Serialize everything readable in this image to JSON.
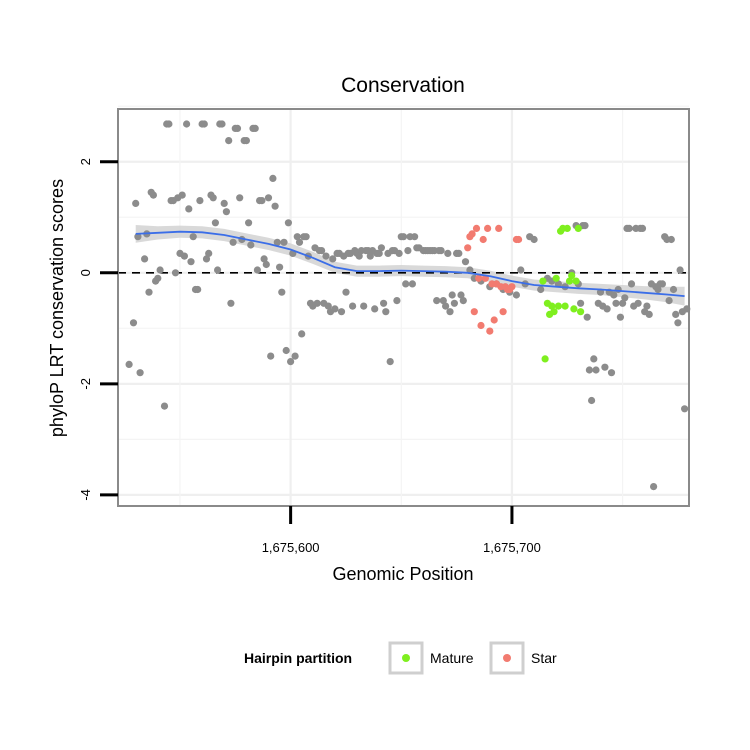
{
  "chart_data": {
    "type": "scatter",
    "title": "Conservation",
    "xlabel": "Genomic Position",
    "ylabel": "phyloP LRT conservation scores",
    "xlim": [
      1675522,
      1675780
    ],
    "ylim": [
      -4.2,
      2.95
    ],
    "grid": true,
    "x_ticks": [
      {
        "value": 1675600,
        "label": "1,675,600"
      },
      {
        "value": 1675700,
        "label": "1,675,700"
      }
    ],
    "y_ticks": [
      {
        "value": 2,
        "label": "2"
      },
      {
        "value": 0,
        "label": "0"
      },
      {
        "value": -2,
        "label": "-2"
      },
      {
        "value": -4,
        "label": "-4"
      }
    ],
    "reference_line": {
      "y": 0,
      "style": "dashed"
    },
    "legend": {
      "title": "Hairpin partition",
      "position": "bottom",
      "entries": [
        {
          "label": "Mature",
          "color": "#7FEF1F"
        },
        {
          "label": "Star",
          "color": "#F27B70"
        }
      ]
    },
    "colors": {
      "other": "#8C8C8C",
      "Mature": "#7FEF1F",
      "Star": "#F27B70",
      "smooth": "#3B6EE8",
      "band": "#D2D2D2"
    },
    "smooth": {
      "x": [
        1675530,
        1675540,
        1675550,
        1675560,
        1675570,
        1675580,
        1675590,
        1675600,
        1675610,
        1675620,
        1675630,
        1675640,
        1675650,
        1675660,
        1675670,
        1675680,
        1675690,
        1675700,
        1675710,
        1675720,
        1675730,
        1675740,
        1675750,
        1675760,
        1675770,
        1675778
      ],
      "y": [
        0.7,
        0.72,
        0.74,
        0.73,
        0.68,
        0.6,
        0.52,
        0.42,
        0.27,
        0.1,
        0.03,
        0.03,
        0.04,
        0.03,
        0.02,
        0.0,
        -0.06,
        -0.15,
        -0.22,
        -0.25,
        -0.28,
        -0.3,
        -0.33,
        -0.36,
        -0.39,
        -0.42
      ],
      "se": [
        0.16,
        0.12,
        0.11,
        0.11,
        0.11,
        0.11,
        0.11,
        0.11,
        0.11,
        0.1,
        0.1,
        0.1,
        0.1,
        0.1,
        0.1,
        0.1,
        0.1,
        0.1,
        0.1,
        0.1,
        0.1,
        0.1,
        0.11,
        0.12,
        0.14,
        0.17
      ]
    },
    "series": [
      {
        "name": "Other",
        "points": [
          [
            1675527,
            -1.65
          ],
          [
            1675529,
            -0.9
          ],
          [
            1675530,
            1.25
          ],
          [
            1675531,
            0.65
          ],
          [
            1675532,
            -1.8
          ],
          [
            1675534,
            0.25
          ],
          [
            1675535,
            0.7
          ],
          [
            1675536,
            -0.35
          ],
          [
            1675537,
            1.45
          ],
          [
            1675538,
            1.4
          ],
          [
            1675539,
            -0.15
          ],
          [
            1675540,
            -0.1
          ],
          [
            1675541,
            0.05
          ],
          [
            1675543,
            -2.4
          ],
          [
            1675544,
            2.68
          ],
          [
            1675545,
            2.68
          ],
          [
            1675546,
            1.3
          ],
          [
            1675547,
            1.3
          ],
          [
            1675548,
            0.0
          ],
          [
            1675549,
            1.35
          ],
          [
            1675550,
            0.35
          ],
          [
            1675551,
            1.4
          ],
          [
            1675552,
            0.3
          ],
          [
            1675553,
            2.68
          ],
          [
            1675554,
            1.15
          ],
          [
            1675555,
            0.2
          ],
          [
            1675556,
            0.65
          ],
          [
            1675557,
            -0.3
          ],
          [
            1675558,
            -0.3
          ],
          [
            1675559,
            1.3
          ],
          [
            1675560,
            2.68
          ],
          [
            1675561,
            2.68
          ],
          [
            1675562,
            0.25
          ],
          [
            1675563,
            0.35
          ],
          [
            1675564,
            1.4
          ],
          [
            1675565,
            1.35
          ],
          [
            1675566,
            0.9
          ],
          [
            1675567,
            0.05
          ],
          [
            1675568,
            2.68
          ],
          [
            1675569,
            2.68
          ],
          [
            1675570,
            1.25
          ],
          [
            1675571,
            1.1
          ],
          [
            1675572,
            2.38
          ],
          [
            1675573,
            -0.55
          ],
          [
            1675574,
            0.55
          ],
          [
            1675575,
            2.6
          ],
          [
            1675576,
            2.6
          ],
          [
            1675577,
            1.35
          ],
          [
            1675578,
            0.6
          ],
          [
            1675579,
            2.38
          ],
          [
            1675580,
            2.38
          ],
          [
            1675581,
            0.9
          ],
          [
            1675582,
            0.5
          ],
          [
            1675583,
            2.6
          ],
          [
            1675584,
            2.6
          ],
          [
            1675585,
            0.05
          ],
          [
            1675586,
            1.3
          ],
          [
            1675587,
            1.3
          ],
          [
            1675588,
            0.25
          ],
          [
            1675589,
            0.15
          ],
          [
            1675590,
            1.35
          ],
          [
            1675591,
            -1.5
          ],
          [
            1675592,
            1.7
          ],
          [
            1675593,
            1.2
          ],
          [
            1675594,
            0.55
          ],
          [
            1675595,
            0.1
          ],
          [
            1675596,
            -0.35
          ],
          [
            1675597,
            0.55
          ],
          [
            1675598,
            -1.4
          ],
          [
            1675599,
            0.9
          ],
          [
            1675600,
            -1.6
          ],
          [
            1675601,
            0.35
          ],
          [
            1675602,
            -1.5
          ],
          [
            1675603,
            0.65
          ],
          [
            1675604,
            0.55
          ],
          [
            1675605,
            -1.1
          ],
          [
            1675606,
            0.65
          ],
          [
            1675607,
            0.65
          ],
          [
            1675608,
            0.3
          ],
          [
            1675609,
            -0.55
          ],
          [
            1675610,
            -0.6
          ],
          [
            1675611,
            0.45
          ],
          [
            1675612,
            -0.55
          ],
          [
            1675613,
            0.4
          ],
          [
            1675614,
            0.4
          ],
          [
            1675615,
            -0.55
          ],
          [
            1675616,
            0.3
          ],
          [
            1675617,
            -0.6
          ],
          [
            1675618,
            -0.7
          ],
          [
            1675619,
            0.25
          ],
          [
            1675620,
            -0.65
          ],
          [
            1675621,
            0.35
          ],
          [
            1675622,
            0.35
          ],
          [
            1675623,
            -0.7
          ],
          [
            1675624,
            0.3
          ],
          [
            1675625,
            -0.35
          ],
          [
            1675626,
            0.35
          ],
          [
            1675627,
            0.35
          ],
          [
            1675628,
            -0.6
          ],
          [
            1675629,
            0.4
          ],
          [
            1675630,
            0.35
          ],
          [
            1675631,
            0.3
          ],
          [
            1675632,
            0.4
          ],
          [
            1675633,
            -0.6
          ],
          [
            1675634,
            0.4
          ],
          [
            1675635,
            0.4
          ],
          [
            1675636,
            0.3
          ],
          [
            1675637,
            0.4
          ],
          [
            1675638,
            -0.65
          ],
          [
            1675639,
            0.35
          ],
          [
            1675640,
            0.35
          ],
          [
            1675641,
            0.45
          ],
          [
            1675642,
            -0.55
          ],
          [
            1675643,
            -0.7
          ],
          [
            1675644,
            0.35
          ],
          [
            1675645,
            -1.6
          ],
          [
            1675646,
            0.4
          ],
          [
            1675647,
            0.4
          ],
          [
            1675648,
            -0.5
          ],
          [
            1675649,
            0.35
          ],
          [
            1675650,
            0.65
          ],
          [
            1675651,
            0.65
          ],
          [
            1675652,
            -0.2
          ],
          [
            1675653,
            0.4
          ],
          [
            1675654,
            0.65
          ],
          [
            1675655,
            -0.2
          ],
          [
            1675656,
            0.65
          ],
          [
            1675657,
            0.45
          ],
          [
            1675658,
            0.45
          ],
          [
            1675660,
            0.4
          ],
          [
            1675661,
            0.4
          ],
          [
            1675662,
            0.4
          ],
          [
            1675663,
            0.4
          ],
          [
            1675664,
            0.4
          ],
          [
            1675665,
            0.4
          ],
          [
            1675666,
            -0.5
          ],
          [
            1675667,
            0.4
          ],
          [
            1675668,
            0.4
          ],
          [
            1675669,
            -0.5
          ],
          [
            1675670,
            -0.6
          ],
          [
            1675671,
            0.35
          ],
          [
            1675672,
            -0.7
          ],
          [
            1675673,
            -0.4
          ],
          [
            1675674,
            -0.55
          ],
          [
            1675675,
            0.35
          ],
          [
            1675676,
            0.35
          ],
          [
            1675677,
            -0.4
          ],
          [
            1675678,
            -0.5
          ],
          [
            1675679,
            0.2
          ],
          [
            1675681,
            0.05
          ],
          [
            1675683,
            -0.1
          ],
          [
            1675686,
            -0.15
          ],
          [
            1675690,
            -0.25
          ],
          [
            1675693,
            -0.2
          ],
          [
            1675696,
            -0.3
          ],
          [
            1675699,
            -0.35
          ],
          [
            1675702,
            -0.4
          ],
          [
            1675704,
            0.05
          ],
          [
            1675706,
            -0.2
          ],
          [
            1675708,
            0.65
          ],
          [
            1675710,
            0.6
          ],
          [
            1675713,
            -0.3
          ],
          [
            1675716,
            -0.1
          ],
          [
            1675718,
            -0.15
          ],
          [
            1675721,
            -0.2
          ],
          [
            1675724,
            -0.25
          ],
          [
            1675727,
            0.0
          ],
          [
            1675729,
            0.85
          ],
          [
            1675730,
            -0.2
          ],
          [
            1675731,
            -0.55
          ],
          [
            1675732,
            0.85
          ],
          [
            1675733,
            0.85
          ],
          [
            1675734,
            -0.8
          ],
          [
            1675735,
            -1.75
          ],
          [
            1675736,
            -2.3
          ],
          [
            1675737,
            -1.55
          ],
          [
            1675738,
            -1.75
          ],
          [
            1675739,
            -0.55
          ],
          [
            1675740,
            -0.35
          ],
          [
            1675741,
            -0.6
          ],
          [
            1675742,
            -1.7
          ],
          [
            1675743,
            -0.65
          ],
          [
            1675744,
            -0.35
          ],
          [
            1675745,
            -1.8
          ],
          [
            1675746,
            -0.4
          ],
          [
            1675747,
            -0.55
          ],
          [
            1675748,
            -0.3
          ],
          [
            1675749,
            -0.8
          ],
          [
            1675750,
            -0.55
          ],
          [
            1675751,
            -0.45
          ],
          [
            1675752,
            0.8
          ],
          [
            1675753,
            0.8
          ],
          [
            1675754,
            -0.2
          ],
          [
            1675755,
            -0.6
          ],
          [
            1675756,
            0.8
          ],
          [
            1675757,
            -0.55
          ],
          [
            1675758,
            0.8
          ],
          [
            1675759,
            0.8
          ],
          [
            1675760,
            -0.7
          ],
          [
            1675761,
            -0.6
          ],
          [
            1675762,
            -0.75
          ],
          [
            1675763,
            -0.2
          ],
          [
            1675764,
            -3.85
          ],
          [
            1675765,
            -0.25
          ],
          [
            1675766,
            -0.3
          ],
          [
            1675767,
            -0.2
          ],
          [
            1675768,
            -0.2
          ],
          [
            1675769,
            0.65
          ],
          [
            1675770,
            0.6
          ],
          [
            1675771,
            -0.5
          ],
          [
            1675772,
            0.6
          ],
          [
            1675773,
            -0.3
          ],
          [
            1675774,
            -0.75
          ],
          [
            1675775,
            -0.9
          ],
          [
            1675776,
            0.05
          ],
          [
            1675777,
            -0.7
          ],
          [
            1675778,
            -2.45
          ],
          [
            1675779,
            -0.65
          ]
        ]
      },
      {
        "name": "Mature",
        "points": [
          [
            1675714,
            -0.15
          ],
          [
            1675715,
            -1.55
          ],
          [
            1675716,
            -0.55
          ],
          [
            1675717,
            -0.75
          ],
          [
            1675718,
            -0.6
          ],
          [
            1675719,
            -0.7
          ],
          [
            1675720,
            -0.1
          ],
          [
            1675721,
            -0.6
          ],
          [
            1675722,
            0.75
          ],
          [
            1675723,
            0.8
          ],
          [
            1675724,
            -0.6
          ],
          [
            1675725,
            0.8
          ],
          [
            1675726,
            -0.15
          ],
          [
            1675727,
            -0.05
          ],
          [
            1675728,
            -0.65
          ],
          [
            1675729,
            -0.15
          ],
          [
            1675730,
            0.8
          ],
          [
            1675731,
            -0.7
          ]
        ]
      },
      {
        "name": "Star",
        "points": [
          [
            1675680,
            0.45
          ],
          [
            1675681,
            0.65
          ],
          [
            1675682,
            0.7
          ],
          [
            1675683,
            -0.7
          ],
          [
            1675684,
            0.8
          ],
          [
            1675685,
            -0.1
          ],
          [
            1675686,
            -0.95
          ],
          [
            1675687,
            0.6
          ],
          [
            1675688,
            -0.1
          ],
          [
            1675689,
            0.8
          ],
          [
            1675690,
            -1.05
          ],
          [
            1675691,
            -0.2
          ],
          [
            1675692,
            -0.85
          ],
          [
            1675693,
            -0.2
          ],
          [
            1675694,
            0.8
          ],
          [
            1675695,
            -0.25
          ],
          [
            1675696,
            -0.7
          ],
          [
            1675697,
            -0.25
          ],
          [
            1675698,
            -0.3
          ],
          [
            1675699,
            -0.3
          ],
          [
            1675700,
            -0.25
          ],
          [
            1675702,
            0.6
          ],
          [
            1675703,
            0.6
          ]
        ]
      }
    ]
  }
}
